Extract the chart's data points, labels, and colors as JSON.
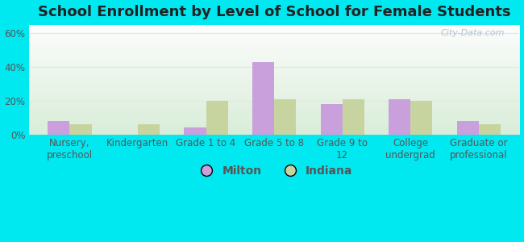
{
  "title": "School Enrollment by Level of School for Female Students",
  "categories": [
    "Nursery,\npreschool",
    "Kindergarten",
    "Grade 1 to 4",
    "Grade 5 to 8",
    "Grade 9 to\n12",
    "College\nundergrad",
    "Graduate or\nprofessional"
  ],
  "milton_values": [
    8,
    0,
    4,
    43,
    18,
    21,
    8
  ],
  "indiana_values": [
    6,
    6,
    20,
    21,
    21,
    20,
    6
  ],
  "milton_color": "#c9a0dc",
  "indiana_color": "#c8d4a0",
  "background_outer": "#00e8f0",
  "ylim": [
    0,
    65
  ],
  "yticks": [
    0,
    20,
    40,
    60
  ],
  "ytick_labels": [
    "0%",
    "20%",
    "40%",
    "60%"
  ],
  "bar_width": 0.32,
  "legend_labels": [
    "Milton",
    "Indiana"
  ],
  "title_fontsize": 13,
  "tick_fontsize": 8.5,
  "legend_fontsize": 10,
  "grid_color": "#e8e8f8",
  "tick_color": "#888888",
  "text_color": "#555555"
}
